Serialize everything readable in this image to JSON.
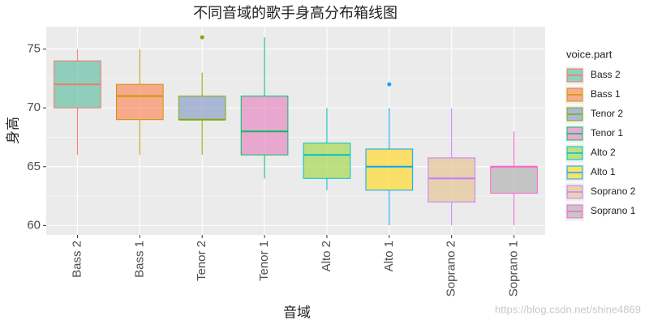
{
  "chart_data": {
    "type": "box",
    "title": "不同音域的歌手身高分布箱线图",
    "x_label": "音域",
    "y_label": "身高",
    "categories": [
      "Bass 2",
      "Bass 1",
      "Tenor 2",
      "Tenor 1",
      "Alto 2",
      "Alto 1",
      "Soprano 2",
      "Soprano 1"
    ],
    "boxes": [
      {
        "min": 66,
        "q1": 70,
        "median": 72,
        "q3": 74,
        "max": 75,
        "outliers": []
      },
      {
        "min": 66,
        "q1": 69,
        "median": 71,
        "q3": 72,
        "max": 75,
        "outliers": []
      },
      {
        "min": 66,
        "q1": 69,
        "median": 69,
        "q3": 71,
        "max": 73,
        "outliers": [
          76
        ]
      },
      {
        "min": 64,
        "q1": 66,
        "median": 68,
        "q3": 71,
        "max": 76,
        "outliers": []
      },
      {
        "min": 63,
        "q1": 64,
        "median": 66,
        "q3": 67,
        "max": 70,
        "outliers": []
      },
      {
        "min": 60,
        "q1": 63,
        "median": 65,
        "q3": 66.5,
        "max": 70,
        "outliers": [
          72
        ]
      },
      {
        "min": 60,
        "q1": 62,
        "median": 64,
        "q3": 65.75,
        "max": 70,
        "outliers": []
      },
      {
        "min": 60,
        "q1": 62.75,
        "median": 65,
        "q3": 65,
        "max": 68,
        "outliers": []
      }
    ],
    "fill_colors": [
      "#66C2A5",
      "#FC8D62",
      "#8DA0CB",
      "#E78AC3",
      "#A6D854",
      "#FFD92F",
      "#E5C494",
      "#B3B3B3"
    ],
    "line_colors": [
      "#F8766D",
      "#CD9600",
      "#7CAE00",
      "#00BE67",
      "#00BFC4",
      "#00A9FF",
      "#C77CFF",
      "#FF61CC"
    ],
    "ylim": [
      59.2,
      76.9
    ],
    "yticks": [
      60,
      65,
      70,
      75
    ],
    "grid": true,
    "legend_title": "voice.part",
    "legend_position": "right",
    "watermark": "https://blog.csdn.net/shine4869"
  }
}
